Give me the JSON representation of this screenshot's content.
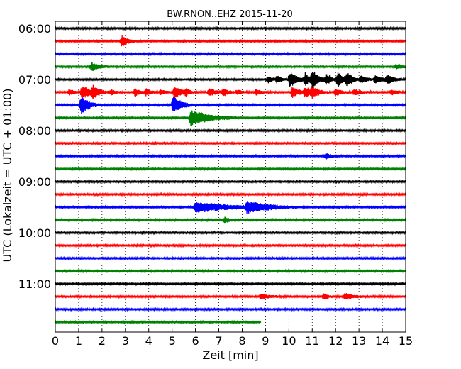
{
  "chart_data": {
    "type": "line",
    "title": "BW.RNON..EHZ 2015-11-20",
    "xlabel": "Zeit  [min]",
    "ylabel": "UTC (Lokalzeit = UTC + 01:00)",
    "xlim": [
      0,
      15
    ],
    "x_ticks": [
      "0",
      "1",
      "2",
      "3",
      "4",
      "5",
      "6",
      "7",
      "8",
      "9",
      "10",
      "11",
      "12",
      "13",
      "14",
      "15"
    ],
    "y_ticks": [
      "06:00",
      "07:00",
      "08:00",
      "09:00",
      "10:00",
      "11:00"
    ],
    "grid": "vertical-dotted",
    "trace_interval_min": 15,
    "colors_cycle": [
      "#000000",
      "#ff0000",
      "#0000ff",
      "#008000"
    ],
    "series": [
      {
        "start": "06:00",
        "end_min": 15,
        "events": []
      },
      {
        "start": "06:15",
        "end_min": 15,
        "events": [
          {
            "t": 2.85,
            "amp": 0.6,
            "dur": 0.25
          }
        ]
      },
      {
        "start": "06:30",
        "end_min": 15,
        "events": []
      },
      {
        "start": "06:45",
        "end_min": 15,
        "events": [
          {
            "t": 1.55,
            "amp": 0.5,
            "dur": 0.3
          },
          {
            "t": 14.6,
            "amp": 0.3,
            "dur": 0.3
          }
        ]
      },
      {
        "start": "07:00",
        "end_min": 15,
        "events": [
          {
            "t": 9.1,
            "amp": 0.35,
            "dur": 0.2
          },
          {
            "t": 9.5,
            "amp": 0.4,
            "dur": 0.2
          },
          {
            "t": 10.05,
            "amp": 0.9,
            "dur": 0.3
          },
          {
            "t": 10.7,
            "amp": 0.6,
            "dur": 0.25
          },
          {
            "t": 11.0,
            "amp": 0.9,
            "dur": 0.3
          },
          {
            "t": 11.6,
            "amp": 0.5,
            "dur": 0.25
          },
          {
            "t": 12.1,
            "amp": 0.75,
            "dur": 0.3
          },
          {
            "t": 12.5,
            "amp": 0.6,
            "dur": 0.25
          },
          {
            "t": 13.1,
            "amp": 0.4,
            "dur": 0.25
          },
          {
            "t": 13.7,
            "amp": 0.45,
            "dur": 0.3
          },
          {
            "t": 14.2,
            "amp": 0.45,
            "dur": 0.3
          }
        ]
      },
      {
        "start": "07:15",
        "end_min": 15,
        "events": [
          {
            "t": 0.6,
            "amp": 0.3,
            "dur": 0.2
          },
          {
            "t": 1.15,
            "amp": 0.8,
            "dur": 0.3
          },
          {
            "t": 1.6,
            "amp": 0.65,
            "dur": 0.3
          },
          {
            "t": 2.4,
            "amp": 0.3,
            "dur": 0.2
          },
          {
            "t": 3.4,
            "amp": 0.45,
            "dur": 0.25
          },
          {
            "t": 3.9,
            "amp": 0.35,
            "dur": 0.2
          },
          {
            "t": 4.5,
            "amp": 0.3,
            "dur": 0.2
          },
          {
            "t": 5.1,
            "amp": 0.7,
            "dur": 0.3
          },
          {
            "t": 5.6,
            "amp": 0.3,
            "dur": 0.2
          },
          {
            "t": 6.6,
            "amp": 0.45,
            "dur": 0.3
          },
          {
            "t": 7.2,
            "amp": 0.35,
            "dur": 0.25
          },
          {
            "t": 7.8,
            "amp": 0.3,
            "dur": 0.2
          },
          {
            "t": 8.6,
            "amp": 0.35,
            "dur": 0.25
          },
          {
            "t": 10.15,
            "amp": 0.6,
            "dur": 0.3
          },
          {
            "t": 10.7,
            "amp": 0.5,
            "dur": 0.3
          },
          {
            "t": 11.0,
            "amp": 0.5,
            "dur": 0.3
          },
          {
            "t": 12.0,
            "amp": 0.4,
            "dur": 0.25
          },
          {
            "t": 12.8,
            "amp": 0.35,
            "dur": 0.3
          },
          {
            "t": 14.4,
            "amp": 0.3,
            "dur": 0.25
          }
        ]
      },
      {
        "start": "07:30",
        "end_min": 15,
        "events": [
          {
            "t": 1.1,
            "amp": 1.0,
            "dur": 0.35
          },
          {
            "t": 5.05,
            "amp": 1.0,
            "dur": 0.35
          }
        ]
      },
      {
        "start": "07:45",
        "end_min": 15,
        "events": [
          {
            "t": 5.8,
            "amp": 0.9,
            "dur": 0.8
          }
        ]
      },
      {
        "start": "08:00",
        "end_min": 15,
        "events": []
      },
      {
        "start": "08:15",
        "end_min": 15,
        "events": []
      },
      {
        "start": "08:30",
        "end_min": 15,
        "events": [
          {
            "t": 11.6,
            "amp": 0.35,
            "dur": 0.2
          }
        ]
      },
      {
        "start": "08:45",
        "end_min": 15,
        "events": []
      },
      {
        "start": "09:00",
        "end_min": 15,
        "events": []
      },
      {
        "start": "09:15",
        "end_min": 15,
        "events": []
      },
      {
        "start": "09:30",
        "end_min": 15,
        "events": [
          {
            "t": 6.0,
            "amp": 0.6,
            "dur": 1.4
          },
          {
            "t": 8.2,
            "amp": 0.55,
            "dur": 1.0
          }
        ]
      },
      {
        "start": "09:45",
        "end_min": 15,
        "events": [
          {
            "t": 7.25,
            "amp": 0.35,
            "dur": 0.2
          }
        ]
      },
      {
        "start": "10:00",
        "end_min": 15,
        "events": []
      },
      {
        "start": "10:15",
        "end_min": 15,
        "events": []
      },
      {
        "start": "10:30",
        "end_min": 15,
        "events": []
      },
      {
        "start": "10:45",
        "end_min": 15,
        "events": []
      },
      {
        "start": "11:00",
        "end_min": 15,
        "events": []
      },
      {
        "start": "11:15",
        "end_min": 15,
        "events": [
          {
            "t": 8.8,
            "amp": 0.3,
            "dur": 0.4
          },
          {
            "t": 11.5,
            "amp": 0.3,
            "dur": 0.2
          },
          {
            "t": 12.4,
            "amp": 0.35,
            "dur": 0.4
          }
        ]
      },
      {
        "start": "11:30",
        "end_min": 15,
        "events": []
      },
      {
        "start": "11:45",
        "end_min": 8.8,
        "events": []
      }
    ]
  }
}
